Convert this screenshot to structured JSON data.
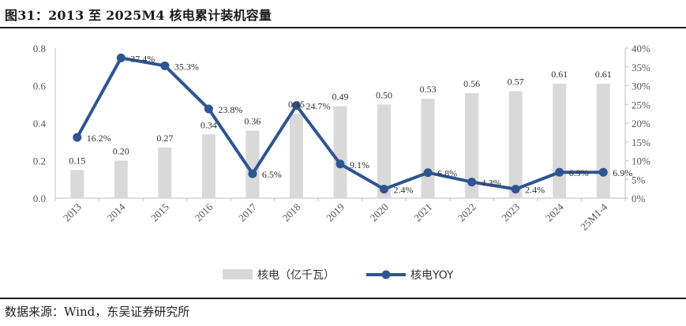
{
  "header": {
    "title": "图31：2013 至 2025M4 核电累计装机容量"
  },
  "footer": {
    "source": "数据来源：Wind，东吴证券研究所"
  },
  "colors": {
    "bar": "#d9d9d9",
    "line": "#2e5591",
    "axis": "#bfbfbf",
    "text": "#555555"
  },
  "chart_data": {
    "type": "bar+line",
    "categories": [
      "2013",
      "2014",
      "2015",
      "2016",
      "2017",
      "2018",
      "2019",
      "2020",
      "2021",
      "2022",
      "2023",
      "2024",
      "25M1-4"
    ],
    "series": [
      {
        "name": "核电（亿千瓦）",
        "type": "bar",
        "axis": "left",
        "values": [
          0.15,
          0.2,
          0.27,
          0.34,
          0.36,
          0.45,
          0.49,
          0.5,
          0.53,
          0.56,
          0.57,
          0.61,
          0.61
        ],
        "labels": [
          "0.15",
          "0.20",
          "0.27",
          "0.34",
          "0.36",
          "0.45",
          "0.49",
          "0.50",
          "0.53",
          "0.56",
          "0.57",
          "0.61",
          "0.61"
        ]
      },
      {
        "name": "核电YOY",
        "type": "line",
        "axis": "right",
        "values": [
          16.2,
          37.4,
          35.3,
          23.8,
          6.5,
          24.7,
          9.1,
          2.4,
          6.8,
          4.3,
          2.4,
          6.9,
          6.9
        ],
        "labels": [
          "16.2%",
          "37.4%",
          "35.3%",
          "23.8%",
          "6.5%",
          "24.7%",
          "9.1%",
          "2.4%",
          "6.8%",
          "4.3%",
          "2.4%",
          "6.9%",
          "6.9%"
        ]
      }
    ],
    "left_axis": {
      "min": 0,
      "max": 0.8,
      "ticks": [
        "0.0",
        "0.2",
        "0.4",
        "0.6",
        "0.8"
      ]
    },
    "right_axis": {
      "min": 0,
      "max": 40,
      "ticks": [
        "0%",
        "5%",
        "10%",
        "15%",
        "20%",
        "25%",
        "30%",
        "35%",
        "40%"
      ]
    },
    "legend_position": "bottom",
    "grid": false
  }
}
